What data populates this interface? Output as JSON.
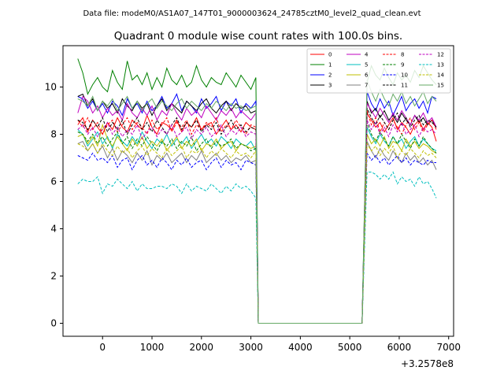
{
  "chart_data": {
    "type": "line",
    "suptitle": "Data file: modeM0/AS1A07_147T01_9000003624_24785cztM0_level2_quad_clean.evt",
    "title": "Quadrant 0 module wise count rates with 100.0s bins.",
    "xlabel": "",
    "ylabel": "",
    "x_offset_label": "+3.2578e8",
    "xlim": [
      -800,
      7100
    ],
    "ylim": [
      -0.55,
      11.75
    ],
    "xticks": [
      0,
      1000,
      2000,
      3000,
      4000,
      5000,
      6000,
      7000
    ],
    "yticks": [
      0,
      2,
      4,
      6,
      8,
      10
    ],
    "legend_position": "top-right",
    "x_gap_start": 3150,
    "x_gap_end": 5250,
    "series": [
      {
        "name": "0",
        "color": "#ff0000",
        "style": "solid",
        "left": [
          8.4,
          8.7,
          8.1,
          8.6,
          8.3,
          8.0,
          8.5,
          8.2,
          8.7,
          8.3,
          8.1,
          8.6,
          8.4,
          8.2,
          8.8,
          8.3,
          8.0,
          8.5,
          8.4,
          8.2,
          8.6,
          8.1,
          8.5,
          8.3,
          8.7,
          8.2,
          8.4,
          8.5,
          8.0,
          8.3,
          8.6,
          8.2,
          8.4,
          8.1,
          8.5,
          8.3,
          8.2
        ],
        "right": [
          8.9,
          8.6,
          8.3,
          8.5,
          8.1,
          8.4,
          8.7,
          8.2,
          8.5,
          8.3,
          8.0,
          8.4,
          8.6,
          8.2,
          8.5,
          8.3,
          7.7
        ]
      },
      {
        "name": "1",
        "color": "#008000",
        "style": "solid",
        "left": [
          11.2,
          10.6,
          9.7,
          10.1,
          10.4,
          10.0,
          9.8,
          10.7,
          10.2,
          9.9,
          11.1,
          10.3,
          10.5,
          10.1,
          10.6,
          9.9,
          10.4,
          10.0,
          10.8,
          10.3,
          10.1,
          10.5,
          10.0,
          10.2,
          10.9,
          10.3,
          10.0,
          10.4,
          10.2,
          10.1,
          10.6,
          10.3,
          10.0,
          10.5,
          10.2,
          9.9,
          10.4
        ],
        "right": [
          10.2,
          10.9,
          10.5,
          10.3,
          10.8,
          10.4,
          10.1,
          10.6,
          10.3,
          10.5,
          10.2,
          10.7,
          10.4,
          10.9,
          10.6,
          10.3,
          10.1
        ]
      },
      {
        "name": "2",
        "color": "#0000ff",
        "style": "solid",
        "left": [
          9.6,
          9.5,
          9.1,
          9.4,
          9.0,
          9.3,
          8.9,
          9.4,
          9.2,
          8.8,
          9.5,
          9.1,
          9.3,
          8.9,
          9.4,
          9.0,
          9.2,
          9.6,
          9.1,
          9.3,
          9.7,
          9.0,
          9.4,
          9.2,
          8.9,
          9.5,
          9.1,
          9.3,
          9.6,
          9.0,
          9.4,
          9.2,
          9.5,
          8.9,
          9.3,
          9.1,
          9.4
        ],
        "right": [
          9.8,
          9.3,
          9.0,
          9.5,
          9.1,
          9.4,
          8.8,
          9.2,
          9.6,
          9.0,
          9.3,
          9.5,
          9.1,
          9.4,
          8.9,
          9.6,
          9.5
        ]
      },
      {
        "name": "3",
        "color": "#000000",
        "style": "solid",
        "left": [
          9.6,
          9.7,
          9.2,
          9.5,
          9.0,
          9.4,
          9.1,
          9.3,
          8.9,
          9.5,
          9.2,
          9.0,
          9.4,
          9.1,
          9.3,
          8.8,
          9.2,
          9.5,
          9.0,
          9.3,
          9.1,
          8.9,
          9.4,
          9.2,
          9.0,
          9.3,
          9.5,
          9.1,
          8.9,
          9.2,
          9.4,
          9.0,
          9.3,
          9.1,
          9.2,
          8.9,
          9.0
        ],
        "right": [
          9.4,
          8.9,
          9.1,
          8.7,
          9.0,
          8.6,
          8.8,
          8.5,
          8.9,
          8.6,
          8.4,
          8.8,
          8.5,
          8.7,
          8.4,
          8.6,
          8.3
        ]
      },
      {
        "name": "4",
        "color": "#bf00bf",
        "style": "solid",
        "left": [
          8.9,
          9.6,
          9.4,
          8.9,
          9.2,
          8.7,
          9.1,
          8.8,
          9.0,
          8.6,
          9.3,
          8.9,
          8.7,
          9.1,
          8.8,
          9.2,
          8.6,
          9.0,
          8.8,
          9.3,
          8.9,
          8.6,
          9.1,
          8.8,
          9.0,
          8.7,
          9.2,
          8.9,
          8.6,
          9.0,
          8.8,
          9.1,
          8.7,
          9.0,
          8.8,
          8.6,
          8.9
        ],
        "right": [
          9.3,
          9.0,
          8.7,
          9.1,
          8.8,
          8.5,
          8.9,
          8.6,
          9.0,
          8.7,
          8.4,
          8.8,
          8.6,
          8.9,
          8.5,
          8.7,
          8.3
        ]
      },
      {
        "name": "5",
        "color": "#00bfbf",
        "style": "solid",
        "left": [
          8.2,
          8.0,
          7.5,
          7.8,
          8.1,
          7.6,
          7.9,
          7.4,
          8.0,
          7.7,
          7.5,
          7.9,
          7.6,
          8.1,
          7.7,
          7.4,
          7.8,
          7.6,
          8.0,
          7.5,
          7.8,
          7.6,
          7.9,
          7.4,
          7.7,
          8.0,
          7.6,
          7.8,
          7.5,
          7.9,
          7.7,
          7.4,
          7.8,
          7.6,
          7.5,
          7.7,
          7.3
        ],
        "right": [
          8.3,
          7.9,
          7.6,
          8.0,
          7.7,
          7.5,
          7.9,
          7.6,
          7.8,
          7.4,
          7.7,
          7.9,
          7.5,
          7.8,
          7.6,
          7.4,
          7.3
        ]
      },
      {
        "name": "6",
        "color": "#bfbf00",
        "style": "solid",
        "left": [
          7.9,
          8.0,
          7.6,
          7.9,
          7.5,
          8.4,
          7.8,
          7.5,
          7.9,
          7.6,
          7.3,
          7.8,
          7.5,
          7.9,
          7.4,
          7.7,
          7.5,
          7.8,
          7.3,
          7.6,
          7.9,
          7.4,
          7.7,
          7.5,
          7.8,
          7.3,
          7.6,
          7.5,
          7.8,
          7.4,
          7.6,
          7.7,
          7.3,
          7.6,
          7.5,
          7.4,
          7.5
        ],
        "right": [
          8.0,
          7.6,
          7.8,
          7.5,
          7.9,
          7.4,
          7.7,
          7.6,
          7.3,
          7.8,
          7.5,
          7.7,
          7.4,
          7.6,
          7.5,
          7.3,
          7.2
        ]
      },
      {
        "name": "7",
        "color": "#808080",
        "style": "solid",
        "left": [
          7.6,
          7.7,
          7.3,
          7.6,
          7.2,
          7.5,
          7.0,
          7.4,
          6.9,
          7.3,
          7.1,
          6.8,
          7.2,
          6.9,
          7.3,
          6.7,
          7.1,
          6.9,
          7.2,
          6.8,
          7.0,
          7.2,
          6.8,
          7.1,
          6.9,
          7.3,
          6.8,
          7.0,
          7.2,
          6.9,
          7.1,
          6.8,
          7.0,
          6.9,
          7.1,
          6.8,
          6.9
        ],
        "right": [
          7.7,
          7.3,
          7.0,
          7.4,
          7.1,
          6.9,
          7.3,
          7.0,
          6.8,
          7.2,
          6.9,
          7.1,
          6.8,
          7.0,
          6.7,
          6.9,
          6.5
        ]
      },
      {
        "name": "8",
        "color": "#ff0000",
        "style": "dashed",
        "left": [
          8.6,
          8.3,
          8.7,
          8.2,
          8.5,
          8.0,
          8.4,
          8.6,
          8.1,
          8.4,
          8.7,
          8.2,
          8.5,
          8.3,
          8.0,
          8.6,
          8.2,
          8.4,
          8.7,
          8.1,
          8.5,
          8.3,
          8.6,
          8.0,
          8.4,
          8.2,
          8.5,
          8.3,
          8.7,
          8.1,
          8.4,
          8.2,
          8.6,
          8.3,
          8.0,
          8.4,
          8.3
        ],
        "right": [
          9.0,
          8.4,
          8.7,
          8.1,
          8.5,
          8.2,
          8.6,
          8.3,
          8.0,
          8.4,
          8.7,
          8.2,
          8.5,
          8.1,
          8.4,
          8.6,
          8.2
        ]
      },
      {
        "name": "9",
        "color": "#008000",
        "style": "dashed",
        "left": [
          8.1,
          8.0,
          7.7,
          8.0,
          7.6,
          7.9,
          7.5,
          7.8,
          8.1,
          7.6,
          7.9,
          7.4,
          7.8,
          7.5,
          7.9,
          7.6,
          7.3,
          7.7,
          7.5,
          7.8,
          7.4,
          7.7,
          7.5,
          7.9,
          7.3,
          7.6,
          7.8,
          7.4,
          7.7,
          7.5,
          7.6,
          7.8,
          7.4,
          7.6,
          7.5,
          7.3,
          7.4
        ],
        "right": [
          8.5,
          8.0,
          7.7,
          8.1,
          7.8,
          7.5,
          7.9,
          7.6,
          8.0,
          7.7,
          7.4,
          7.8,
          7.5,
          7.9,
          7.6,
          7.4,
          7.2
        ]
      },
      {
        "name": "10",
        "color": "#0000ff",
        "style": "dashed",
        "left": [
          7.1,
          7.0,
          6.9,
          7.2,
          6.9,
          7.0,
          6.8,
          7.1,
          6.6,
          6.9,
          7.0,
          6.5,
          6.9,
          7.1,
          6.7,
          6.9,
          6.6,
          7.0,
          6.8,
          6.5,
          6.9,
          6.7,
          7.0,
          6.6,
          6.8,
          6.9,
          6.5,
          6.8,
          7.0,
          6.6,
          6.9,
          6.7,
          6.8,
          6.5,
          6.9,
          6.8,
          6.7
        ],
        "right": [
          7.2,
          6.9,
          7.1,
          6.8,
          7.0,
          6.7,
          6.9,
          7.1,
          6.8,
          7.0,
          6.7,
          6.9,
          6.8,
          6.7,
          6.9,
          6.8,
          6.8
        ]
      },
      {
        "name": "11",
        "color": "#000000",
        "style": "dashed",
        "left": [
          8.6,
          8.5,
          8.2,
          8.6,
          8.3,
          8.7,
          8.1,
          8.5,
          8.2,
          8.6,
          8.0,
          8.4,
          8.7,
          8.2,
          8.5,
          8.1,
          8.6,
          8.3,
          8.0,
          8.4,
          8.7,
          8.2,
          8.5,
          8.3,
          8.6,
          8.1,
          8.4,
          8.2,
          8.5,
          8.0,
          8.3,
          8.6,
          8.2,
          8.4,
          8.1,
          8.3,
          8.2
        ],
        "right": [
          9.1,
          8.7,
          8.4,
          8.8,
          8.5,
          8.2,
          8.6,
          8.9,
          8.4,
          8.7,
          8.3,
          8.6,
          8.8,
          8.4,
          8.6,
          8.5,
          8.3
        ]
      },
      {
        "name": "12",
        "color": "#bf00bf",
        "style": "dashed",
        "left": [
          8.2,
          8.4,
          8.0,
          8.3,
          7.9,
          8.2,
          8.5,
          8.0,
          8.3,
          7.9,
          8.2,
          8.0,
          8.4,
          7.8,
          8.1,
          8.3,
          7.9,
          8.2,
          8.0,
          8.4,
          7.9,
          8.1,
          8.3,
          7.8,
          8.2,
          8.0,
          8.3,
          7.9,
          8.1,
          8.4,
          7.9,
          8.2,
          8.0,
          8.3,
          7.9,
          8.1,
          8.0
        ],
        "right": [
          8.6,
          8.2,
          8.5,
          8.0,
          8.3,
          7.9,
          8.4,
          8.1,
          8.5,
          8.0,
          8.2,
          8.4,
          7.9,
          8.3,
          8.1,
          8.2,
          8.0
        ]
      },
      {
        "name": "13",
        "color": "#00bfbf",
        "style": "dashed",
        "left": [
          5.9,
          6.1,
          6.0,
          6.0,
          6.2,
          5.5,
          5.9,
          5.8,
          6.1,
          5.9,
          5.7,
          6.0,
          5.6,
          5.9,
          5.7,
          5.7,
          5.8,
          5.8,
          5.7,
          5.9,
          5.8,
          5.5,
          5.9,
          5.6,
          5.8,
          5.7,
          5.6,
          5.9,
          5.7,
          5.5,
          5.8,
          5.6,
          5.9,
          5.7,
          5.8,
          5.6,
          5.3
        ],
        "right": [
          6.4,
          6.4,
          6.3,
          6.1,
          6.3,
          6.1,
          6.4,
          5.9,
          6.2,
          6.0,
          6.1,
          5.8,
          6.2,
          5.9,
          6.0,
          5.7,
          5.3
        ]
      },
      {
        "name": "14",
        "color": "#bfbf00",
        "style": "dashed",
        "left": [
          7.6,
          7.5,
          7.3,
          7.6,
          7.2,
          7.6,
          7.3,
          7.1,
          7.5,
          7.2,
          7.4,
          7.0,
          7.3,
          7.5,
          7.1,
          7.4,
          7.2,
          7.0,
          7.4,
          7.1,
          7.3,
          7.5,
          7.0,
          7.3,
          7.2,
          7.4,
          7.0,
          7.3,
          7.1,
          7.4,
          7.2,
          7.0,
          7.3,
          7.1,
          7.2,
          7.0,
          7.3
        ],
        "right": [
          7.6,
          7.3,
          7.5,
          7.1,
          7.4,
          7.2,
          7.5,
          7.0,
          7.3,
          7.1,
          7.4,
          7.2,
          7.0,
          7.3,
          7.1,
          7.2,
          7.0
        ]
      },
      {
        "name": "15",
        "color": "#66aa66",
        "style": "solid",
        "left": [
          9.5,
          9.4,
          9.2,
          9.6,
          9.0,
          9.4,
          9.2,
          9.5,
          9.0,
          9.3,
          9.6,
          9.1,
          9.4,
          9.0,
          9.3,
          9.5,
          9.1,
          9.4,
          9.2,
          9.0,
          9.3,
          9.5,
          9.1,
          9.4,
          9.2,
          9.0,
          9.3,
          9.1,
          9.4,
          9.2,
          9.0,
          9.3,
          9.1,
          9.2,
          9.0,
          9.1,
          9.2
        ],
        "right": [
          10.3,
          9.8,
          9.4,
          9.9,
          9.5,
          9.2,
          9.7,
          9.4,
          9.8,
          9.3,
          9.6,
          9.2,
          9.5,
          9.8,
          9.3,
          9.6,
          9.4
        ]
      }
    ]
  }
}
